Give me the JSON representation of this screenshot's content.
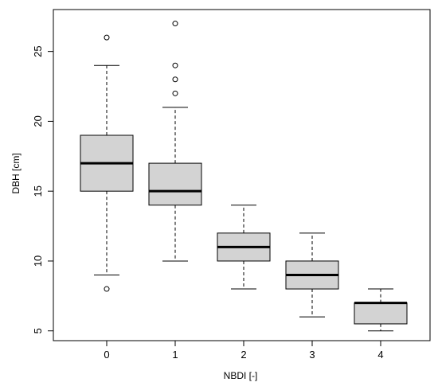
{
  "chart_data": {
    "type": "boxplot",
    "xlabel": "NBDI [-]",
    "ylabel": "DBH [cm]",
    "categories": [
      "0",
      "1",
      "2",
      "3",
      "4"
    ],
    "ylim": [
      4.3,
      28
    ],
    "yticks": [
      5,
      10,
      15,
      20,
      25
    ],
    "grid": false,
    "boxes": [
      {
        "category": "0",
        "whisker_low": 9,
        "q1": 15,
        "median": 17,
        "q3": 19,
        "whisker_high": 24,
        "outliers": [
          26,
          8
        ]
      },
      {
        "category": "1",
        "whisker_low": 10,
        "q1": 14,
        "median": 15,
        "q3": 17,
        "whisker_high": 21,
        "outliers": [
          27,
          24,
          23,
          22
        ]
      },
      {
        "category": "2",
        "whisker_low": 8,
        "q1": 10,
        "median": 11,
        "q3": 12,
        "whisker_high": 14,
        "outliers": []
      },
      {
        "category": "3",
        "whisker_low": 6,
        "q1": 8,
        "median": 9,
        "q3": 10,
        "whisker_high": 12,
        "outliers": []
      },
      {
        "category": "4",
        "whisker_low": 5,
        "q1": 5.5,
        "median": 7,
        "q3": 7,
        "whisker_high": 8,
        "outliers": []
      }
    ],
    "colors": {
      "box_fill": "#d3d3d3",
      "stroke": "#000000"
    }
  }
}
